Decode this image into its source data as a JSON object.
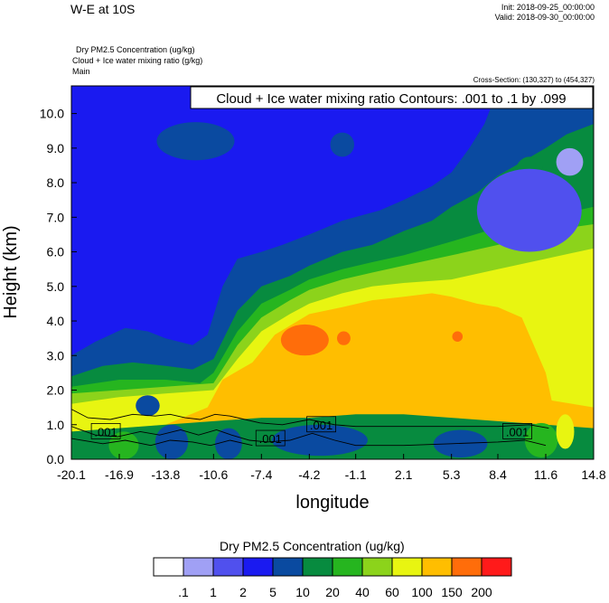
{
  "header": {
    "title": "W-E at 10S",
    "init": "Init: 2018-09-25_00:00:00",
    "valid": "Valid: 2018-09-30_00:00:00",
    "variables": [
      "Dry PM2.5 Concentration   (ug/kg)",
      "Cloud + Ice water mixing ratio   (g/kg)",
      "Main"
    ],
    "cross_section": "Cross-Section: (130,327) to (454,327)"
  },
  "chart_data": {
    "type": "heatmap",
    "xlabel": "longitude",
    "ylabel": "Height (km)",
    "x_ticks": [
      "-20.1",
      "-16.9",
      "-13.8",
      "-10.6",
      "-7.4",
      "-4.2",
      "-1.1",
      "2.1",
      "5.3",
      "8.4",
      "11.6",
      "14.8"
    ],
    "x_tick_values": [
      -20.1,
      -16.9,
      -13.8,
      -10.6,
      -7.4,
      -4.2,
      -1.1,
      2.1,
      5.3,
      8.4,
      11.6,
      14.8
    ],
    "y_ticks": [
      "0.0",
      "1.0",
      "2.0",
      "3.0",
      "4.0",
      "5.0",
      "6.0",
      "7.0",
      "8.0",
      "9.0",
      "10.0"
    ],
    "y_tick_values": [
      0,
      1,
      2,
      3,
      4,
      5,
      6,
      7,
      8,
      9,
      10
    ],
    "xlim": [
      -20.1,
      14.8
    ],
    "ylim": [
      0,
      10.8
    ],
    "contour_title": "Cloud + Ice water mixing ratio Contours: .001 to .1 by .099",
    "contour_labels": [
      {
        "text": ".001",
        "x": -17.8,
        "y": 0.8
      },
      {
        "text": ".001",
        "x": -6.8,
        "y": 0.6
      },
      {
        "text": ".001",
        "x": -3.4,
        "y": 1.0
      },
      {
        "text": ".001",
        "x": 9.7,
        "y": 0.8
      }
    ],
    "colorbar": {
      "title": "Dry PM2.5 Concentration  (ug/kg)",
      "labels": [
        ".1",
        "1",
        "2",
        "5",
        "10",
        "20",
        "40",
        "60",
        "100",
        "150",
        "200"
      ],
      "colors": [
        "#ffffff",
        "#a0a0f5",
        "#5050ee",
        "#1a1af0",
        "#0a4aa0",
        "#078b3f",
        "#26b51f",
        "#8cd31b",
        "#e8f511",
        "#ffbe00",
        "#ff6d0a",
        "#ff1a1a"
      ]
    },
    "bands": [
      {
        "level": 4,
        "color": "#0a4aa0",
        "top": [
          [
            -20.1,
            3.0
          ],
          [
            -18.5,
            3.4
          ],
          [
            -16.5,
            3.8
          ],
          [
            -15.0,
            3.7
          ],
          [
            -13.8,
            3.5
          ],
          [
            -12.0,
            3.3
          ],
          [
            -11.0,
            3.6
          ],
          [
            -10.0,
            5.0
          ],
          [
            -9.0,
            5.8
          ],
          [
            -7.4,
            6.0
          ],
          [
            -6.0,
            6.2
          ],
          [
            -4.2,
            6.5
          ],
          [
            -2.0,
            6.9
          ],
          [
            0.5,
            7.2
          ],
          [
            2.1,
            7.5
          ],
          [
            4.0,
            7.9
          ],
          [
            5.3,
            8.3
          ],
          [
            6.5,
            9.0
          ],
          [
            7.5,
            9.7
          ],
          [
            8.5,
            10.8
          ],
          [
            14.8,
            10.8
          ]
        ]
      },
      {
        "level": 5,
        "color": "#078b3f",
        "top": [
          [
            -20.1,
            2.4
          ],
          [
            -18.0,
            2.7
          ],
          [
            -16.0,
            2.8
          ],
          [
            -13.8,
            2.7
          ],
          [
            -12.0,
            2.6
          ],
          [
            -10.6,
            2.9
          ],
          [
            -9.0,
            4.3
          ],
          [
            -7.4,
            5.0
          ],
          [
            -5.5,
            5.3
          ],
          [
            -4.2,
            5.6
          ],
          [
            -2.0,
            6.0
          ],
          [
            0.0,
            6.2
          ],
          [
            2.1,
            6.6
          ],
          [
            4.0,
            6.9
          ],
          [
            5.3,
            7.3
          ],
          [
            7.0,
            7.7
          ],
          [
            8.4,
            8.2
          ],
          [
            10.0,
            8.6
          ],
          [
            11.6,
            9.0
          ],
          [
            13.0,
            9.4
          ],
          [
            14.8,
            9.7
          ]
        ]
      },
      {
        "level": 6,
        "color": "#26b51f",
        "top": [
          [
            -20.1,
            2.1
          ],
          [
            -16.9,
            2.3
          ],
          [
            -13.8,
            2.3
          ],
          [
            -11.5,
            2.2
          ],
          [
            -10.6,
            2.5
          ],
          [
            -9.0,
            3.7
          ],
          [
            -7.4,
            4.5
          ],
          [
            -5.5,
            4.9
          ],
          [
            -4.2,
            5.2
          ],
          [
            -2.0,
            5.5
          ],
          [
            0.0,
            5.7
          ],
          [
            2.1,
            5.9
          ],
          [
            5.3,
            6.3
          ],
          [
            8.4,
            6.7
          ],
          [
            11.6,
            7.0
          ],
          [
            14.8,
            7.3
          ]
        ]
      },
      {
        "level": 7,
        "color": "#8cd31b",
        "top": [
          [
            -20.1,
            1.9
          ],
          [
            -16.9,
            2.0
          ],
          [
            -13.8,
            2.1
          ],
          [
            -10.6,
            2.2
          ],
          [
            -9.0,
            3.3
          ],
          [
            -7.4,
            4.1
          ],
          [
            -5.5,
            4.6
          ],
          [
            -4.2,
            4.9
          ],
          [
            -2.0,
            5.2
          ],
          [
            0.0,
            5.4
          ],
          [
            2.1,
            5.6
          ],
          [
            5.3,
            5.9
          ],
          [
            8.4,
            6.2
          ],
          [
            11.6,
            6.6
          ],
          [
            14.8,
            6.8
          ]
        ]
      },
      {
        "level": 8,
        "color": "#e8f511",
        "top": [
          [
            -20.1,
            1.6
          ],
          [
            -16.9,
            1.8
          ],
          [
            -13.8,
            1.9
          ],
          [
            -10.6,
            2.0
          ],
          [
            -9.0,
            2.9
          ],
          [
            -7.4,
            3.7
          ],
          [
            -5.5,
            4.2
          ],
          [
            -4.2,
            4.5
          ],
          [
            -2.0,
            4.8
          ],
          [
            0.0,
            5.0
          ],
          [
            2.1,
            5.1
          ],
          [
            5.3,
            5.2
          ],
          [
            8.4,
            5.5
          ],
          [
            11.6,
            5.8
          ],
          [
            14.8,
            6.1
          ]
        ]
      },
      {
        "level": 9,
        "color": "#ffbe00",
        "top": [
          [
            -20.1,
            0.8
          ],
          [
            -16.9,
            0.9
          ],
          [
            -13.8,
            1.0
          ],
          [
            -11.0,
            1.5
          ],
          [
            -10.0,
            2.3
          ],
          [
            -8.0,
            2.8
          ],
          [
            -6.5,
            3.6
          ],
          [
            -4.2,
            4.2
          ],
          [
            -2.0,
            4.4
          ],
          [
            0.0,
            4.6
          ],
          [
            2.1,
            4.7
          ],
          [
            4.0,
            4.8
          ],
          [
            5.3,
            4.7
          ],
          [
            7.0,
            4.5
          ],
          [
            8.4,
            4.4
          ],
          [
            10.0,
            4.1
          ],
          [
            11.6,
            2.5
          ],
          [
            12.0,
            1.7
          ],
          [
            14.8,
            1.5
          ]
        ]
      },
      {
        "level": 5,
        "color": "#078b3f",
        "top": [
          [
            -20.1,
            0.8
          ],
          [
            -16.9,
            0.9
          ],
          [
            -13.8,
            1.0
          ],
          [
            -10.6,
            1.1
          ],
          [
            -7.4,
            1.2
          ],
          [
            -4.2,
            1.2
          ],
          [
            -1.1,
            1.3
          ],
          [
            2.1,
            1.3
          ],
          [
            5.3,
            1.2
          ],
          [
            8.4,
            1.1
          ],
          [
            11.6,
            1.0
          ],
          [
            14.8,
            0.9
          ]
        ]
      }
    ],
    "patches": [
      {
        "level": 10,
        "color": "#ff6d0a",
        "center": [
          -4.5,
          3.45
        ],
        "radius": [
          1.6,
          0.45
        ]
      },
      {
        "level": 10,
        "color": "#ff6d0a",
        "center": [
          -1.9,
          3.5
        ],
        "radius": [
          0.45,
          0.2
        ]
      },
      {
        "level": 10,
        "color": "#ff6d0a",
        "center": [
          5.7,
          3.55
        ],
        "radius": [
          0.35,
          0.15
        ]
      },
      {
        "level": 4,
        "color": "#0a4aa0",
        "center": [
          -11.8,
          9.2
        ],
        "radius": [
          2.6,
          0.55
        ]
      },
      {
        "level": 4,
        "color": "#0a4aa0",
        "center": [
          -2.0,
          9.1
        ],
        "radius": [
          0.8,
          0.35
        ]
      },
      {
        "level": 5,
        "color": "#078b3f",
        "center": [
          10.5,
          8.2
        ],
        "radius": [
          1.0,
          0.55
        ]
      },
      {
        "level": 2,
        "color": "#5050ee",
        "center": [
          10.5,
          7.2
        ],
        "radius": [
          3.5,
          1.2
        ]
      },
      {
        "level": 4,
        "color": "#0a4aa0",
        "center": [
          -15.0,
          1.55
        ],
        "radius": [
          0.8,
          0.3
        ]
      },
      {
        "level": 4,
        "color": "#0a4aa0",
        "center": [
          -13.4,
          0.5
        ],
        "radius": [
          1.1,
          0.5
        ]
      },
      {
        "level": 4,
        "color": "#0a4aa0",
        "center": [
          -9.6,
          0.45
        ],
        "radius": [
          0.9,
          0.45
        ]
      },
      {
        "level": 4,
        "color": "#0a4aa0",
        "center": [
          -3.5,
          0.55
        ],
        "radius": [
          3.2,
          0.45
        ]
      },
      {
        "level": 4,
        "color": "#0a4aa0",
        "center": [
          5.9,
          0.45
        ],
        "radius": [
          1.8,
          0.4
        ]
      },
      {
        "level": 6,
        "color": "#26b51f",
        "center": [
          -16.6,
          0.4
        ],
        "radius": [
          1.0,
          0.4
        ]
      },
      {
        "level": 6,
        "color": "#26b51f",
        "center": [
          11.3,
          0.55
        ],
        "radius": [
          1.1,
          0.5
        ]
      },
      {
        "level": 8,
        "color": "#e8f511",
        "center": [
          12.9,
          0.8
        ],
        "radius": [
          0.6,
          0.5
        ]
      },
      {
        "level": 1,
        "color": "#a0a0f5",
        "center": [
          13.2,
          8.6
        ],
        "radius": [
          0.9,
          0.4
        ]
      }
    ],
    "contour_curves": [
      [
        [
          -20.1,
          1.45
        ],
        [
          -19.0,
          1.2
        ],
        [
          -17.5,
          1.15
        ],
        [
          -16.0,
          1.3
        ],
        [
          -14.5,
          1.25
        ],
        [
          -13.5,
          1.3
        ],
        [
          -12.5,
          1.2
        ],
        [
          -11.5,
          1.15
        ],
        [
          -10.5,
          1.3
        ],
        [
          -9.5,
          1.25
        ],
        [
          -8.5,
          1.15
        ],
        [
          -7.5,
          1.05
        ],
        [
          -6.0,
          1.0
        ],
        [
          -4.2,
          1.15
        ],
        [
          -2.5,
          1.0
        ],
        [
          -1.1,
          0.95
        ],
        [
          2.1,
          0.95
        ],
        [
          5.0,
          0.95
        ],
        [
          8.4,
          0.95
        ],
        [
          10.5,
          1.0
        ],
        [
          11.8,
          0.9
        ]
      ],
      [
        [
          -20.1,
          0.95
        ],
        [
          -18.5,
          0.7
        ],
        [
          -17.0,
          0.65
        ],
        [
          -15.5,
          0.8
        ],
        [
          -14.2,
          0.7
        ],
        [
          -12.8,
          0.85
        ],
        [
          -11.6,
          0.7
        ],
        [
          -10.4,
          0.85
        ],
        [
          -9.4,
          0.7
        ],
        [
          -8.2,
          0.55
        ],
        [
          -7.0,
          0.5
        ],
        [
          -5.5,
          0.55
        ],
        [
          -4.0,
          0.75
        ],
        [
          -2.5,
          0.55
        ],
        [
          -1.1,
          0.4
        ],
        [
          2.1,
          0.4
        ],
        [
          5.3,
          0.45
        ],
        [
          8.4,
          0.5
        ],
        [
          10.2,
          0.55
        ],
        [
          11.6,
          0.4
        ]
      ],
      [
        [
          -20.1,
          0.6
        ],
        [
          -18.0,
          0.45
        ],
        [
          -16.5,
          0.55
        ],
        [
          -14.8,
          0.4
        ],
        [
          -13.5,
          0.55
        ],
        [
          -12.0,
          0.5
        ],
        [
          -10.8,
          0.4
        ],
        [
          -9.5,
          0.55
        ],
        [
          -8.0,
          0.4
        ]
      ]
    ]
  }
}
